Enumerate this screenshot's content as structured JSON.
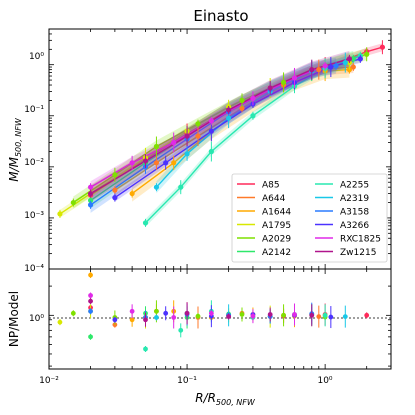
{
  "chart_data": [
    {
      "type": "scatter",
      "title": "Einasto",
      "xlabel": "R/R500,NFW",
      "ylabel": "M/M500,NFW",
      "xscale": "log",
      "yscale": "log",
      "xlim": [
        0.01,
        3.0
      ],
      "ylim": [
        0.0001,
        5.0
      ],
      "grid": false,
      "xticks": [
        0.01,
        0.1,
        1.0
      ],
      "yticks": [
        0.0001,
        0.001,
        0.01,
        0.1,
        1.0
      ],
      "ytick_labels": [
        "10⁻⁴",
        "10⁻³",
        "10⁻²",
        "10⁻¹",
        "10⁰"
      ],
      "legend_position": "lower-right",
      "legend_columns": 2,
      "series": [
        {
          "name": "A85",
          "color": "#ff2a5a",
          "x": [
            0.02,
            0.05,
            0.1,
            0.2,
            0.5,
            1.0,
            2.0,
            2.6
          ],
          "y": [
            0.0028,
            0.014,
            0.045,
            0.13,
            0.42,
            0.9,
            1.8,
            2.2
          ]
        },
        {
          "name": "A644",
          "color": "#ff7a2a",
          "x": [
            0.03,
            0.06,
            0.12,
            0.25,
            0.5,
            0.9,
            1.6
          ],
          "y": [
            0.0035,
            0.012,
            0.04,
            0.14,
            0.4,
            0.8,
            0.9
          ]
        },
        {
          "name": "A1644",
          "color": "#ffaa00",
          "x": [
            0.04,
            0.08,
            0.15,
            0.3,
            0.6,
            1.0,
            1.5
          ],
          "y": [
            0.003,
            0.012,
            0.05,
            0.17,
            0.45,
            0.75,
            0.8
          ]
        },
        {
          "name": "A1795",
          "color": "#d8e800",
          "x": [
            0.012,
            0.02,
            0.05,
            0.1,
            0.2,
            0.4,
            0.8,
            1.5
          ],
          "y": [
            0.0012,
            0.003,
            0.015,
            0.05,
            0.15,
            0.35,
            0.8,
            1.1
          ]
        },
        {
          "name": "A2029",
          "color": "#7fe000",
          "x": [
            0.015,
            0.03,
            0.06,
            0.12,
            0.25,
            0.5,
            1.0,
            2.0
          ],
          "y": [
            0.002,
            0.007,
            0.025,
            0.07,
            0.2,
            0.45,
            0.95,
            1.6
          ]
        },
        {
          "name": "A2142",
          "color": "#2ee86a",
          "x": [
            0.02,
            0.05,
            0.1,
            0.2,
            0.4,
            0.8,
            1.6
          ],
          "y": [
            0.0022,
            0.012,
            0.04,
            0.13,
            0.34,
            0.75,
            1.3
          ]
        },
        {
          "name": "A2255",
          "color": "#28e8b0",
          "x": [
            0.05,
            0.09,
            0.15,
            0.3,
            0.6,
            1.0,
            1.8
          ],
          "y": [
            0.0008,
            0.004,
            0.02,
            0.1,
            0.38,
            0.85,
            1.5
          ]
        },
        {
          "name": "A2319",
          "color": "#18c8e8",
          "x": [
            0.06,
            0.1,
            0.2,
            0.4,
            0.8,
            1.4
          ],
          "y": [
            0.004,
            0.018,
            0.09,
            0.3,
            0.75,
            1.1
          ]
        },
        {
          "name": "A3158",
          "color": "#2a7cff",
          "x": [
            0.02,
            0.05,
            0.1,
            0.2,
            0.4,
            0.8,
            1.2
          ],
          "y": [
            0.0018,
            0.01,
            0.035,
            0.12,
            0.33,
            0.78,
            0.95
          ]
        },
        {
          "name": "A3266",
          "color": "#4b32ff",
          "x": [
            0.03,
            0.07,
            0.15,
            0.3,
            0.6,
            1.1,
            1.8
          ],
          "y": [
            0.0025,
            0.012,
            0.05,
            0.17,
            0.45,
            0.9,
            1.3
          ]
        },
        {
          "name": "RXC1825",
          "color": "#e02ae8",
          "x": [
            0.02,
            0.04,
            0.08,
            0.15,
            0.3,
            0.6,
            1.0
          ],
          "y": [
            0.004,
            0.012,
            0.03,
            0.08,
            0.22,
            0.55,
            0.95
          ]
        },
        {
          "name": "Zw1215",
          "color": "#b0148c",
          "x": [
            0.02,
            0.05,
            0.1,
            0.2,
            0.4,
            0.8,
            1.5
          ],
          "y": [
            0.003,
            0.013,
            0.04,
            0.13,
            0.35,
            0.8,
            1.3
          ]
        }
      ]
    },
    {
      "type": "scatter",
      "xlabel": "R/R500,NFW",
      "ylabel": "NP/Model",
      "xscale": "log",
      "yscale": "log",
      "xlim": [
        0.01,
        3.0
      ],
      "ylim": [
        0.28,
        3.0
      ],
      "ytick_labels": [
        "10⁰"
      ],
      "reference_line": 1.0,
      "series": [
        {
          "name": "A85",
          "color": "#ff2a5a",
          "x": [
            0.02,
            0.05,
            0.1,
            0.2,
            0.5,
            1.0,
            2.0
          ],
          "y": [
            1.2,
            0.95,
            1.05,
            1.0,
            0.98,
            1.02,
            1.0
          ]
        },
        {
          "name": "A644",
          "color": "#ff7a2a",
          "x": [
            0.03,
            0.06,
            0.12,
            0.25,
            0.5,
            0.9
          ],
          "y": [
            0.8,
            1.1,
            0.95,
            1.05,
            1.0,
            0.97
          ]
        },
        {
          "name": "A1644",
          "color": "#ffaa00",
          "x": [
            0.02,
            0.04,
            0.08,
            0.15,
            0.3,
            0.6,
            1.0
          ],
          "y": [
            2.6,
            0.9,
            1.1,
            0.95,
            1.02,
            0.98,
            1.0
          ]
        },
        {
          "name": "A1795",
          "color": "#d8e800",
          "x": [
            0.012,
            0.02,
            0.05,
            0.1,
            0.2,
            0.4,
            0.8
          ],
          "y": [
            0.85,
            1.1,
            0.95,
            1.05,
            1.0,
            0.97,
            1.03
          ]
        },
        {
          "name": "A2029",
          "color": "#7fe000",
          "x": [
            0.015,
            0.03,
            0.06,
            0.12,
            0.25,
            0.5,
            1.0
          ],
          "y": [
            1.05,
            0.95,
            1.1,
            0.98,
            1.02,
            1.0,
            0.96
          ]
        },
        {
          "name": "A2142",
          "color": "#2ee86a",
          "x": [
            0.02,
            0.05,
            0.1,
            0.2,
            0.4,
            0.8
          ],
          "y": [
            0.6,
            1.05,
            0.95,
            1.03,
            0.98,
            1.01
          ]
        },
        {
          "name": "A2255",
          "color": "#28e8b0",
          "x": [
            0.05,
            0.09,
            0.15,
            0.3,
            0.6,
            1.0
          ],
          "y": [
            0.45,
            0.7,
            1.1,
            0.95,
            1.02,
            1.0
          ]
        },
        {
          "name": "A2319",
          "color": "#18c8e8",
          "x": [
            0.06,
            0.1,
            0.2,
            0.4,
            0.8,
            1.4
          ],
          "y": [
            0.95,
            1.05,
            1.0,
            0.98,
            1.03,
            0.97
          ]
        },
        {
          "name": "A3158",
          "color": "#2a7cff",
          "x": [
            0.02,
            0.05,
            0.1,
            0.2,
            0.4,
            0.8
          ],
          "y": [
            1.1,
            0.95,
            1.02,
            1.0,
            0.97,
            1.04
          ]
        },
        {
          "name": "A3266",
          "color": "#4b32ff",
          "x": [
            0.03,
            0.07,
            0.15,
            0.3,
            0.6,
            1.1
          ],
          "y": [
            0.9,
            1.05,
            0.98,
            1.02,
            1.0,
            0.96
          ]
        },
        {
          "name": "RXC1825",
          "color": "#e02ae8",
          "x": [
            0.02,
            0.04,
            0.08,
            0.15,
            0.3,
            0.6
          ],
          "y": [
            1.6,
            1.1,
            0.95,
            1.05,
            0.98,
            1.02
          ]
        },
        {
          "name": "Zw1215",
          "color": "#b0148c",
          "x": [
            0.02,
            0.05,
            0.1,
            0.2,
            0.4,
            0.8
          ],
          "y": [
            1.4,
            0.9,
            1.05,
            0.97,
            1.02,
            1.0
          ]
        }
      ]
    }
  ],
  "labels": {
    "title": "Einasto",
    "ylabel_top_main": "M/M",
    "ylabel_top_sub": "500, NFW",
    "ylabel_bottom": "NP/Model",
    "xlabel_main": "R/R",
    "xlabel_sub": "500, NFW",
    "xtick_labels": [
      "10⁻²",
      "10⁻¹",
      "10⁰"
    ]
  }
}
